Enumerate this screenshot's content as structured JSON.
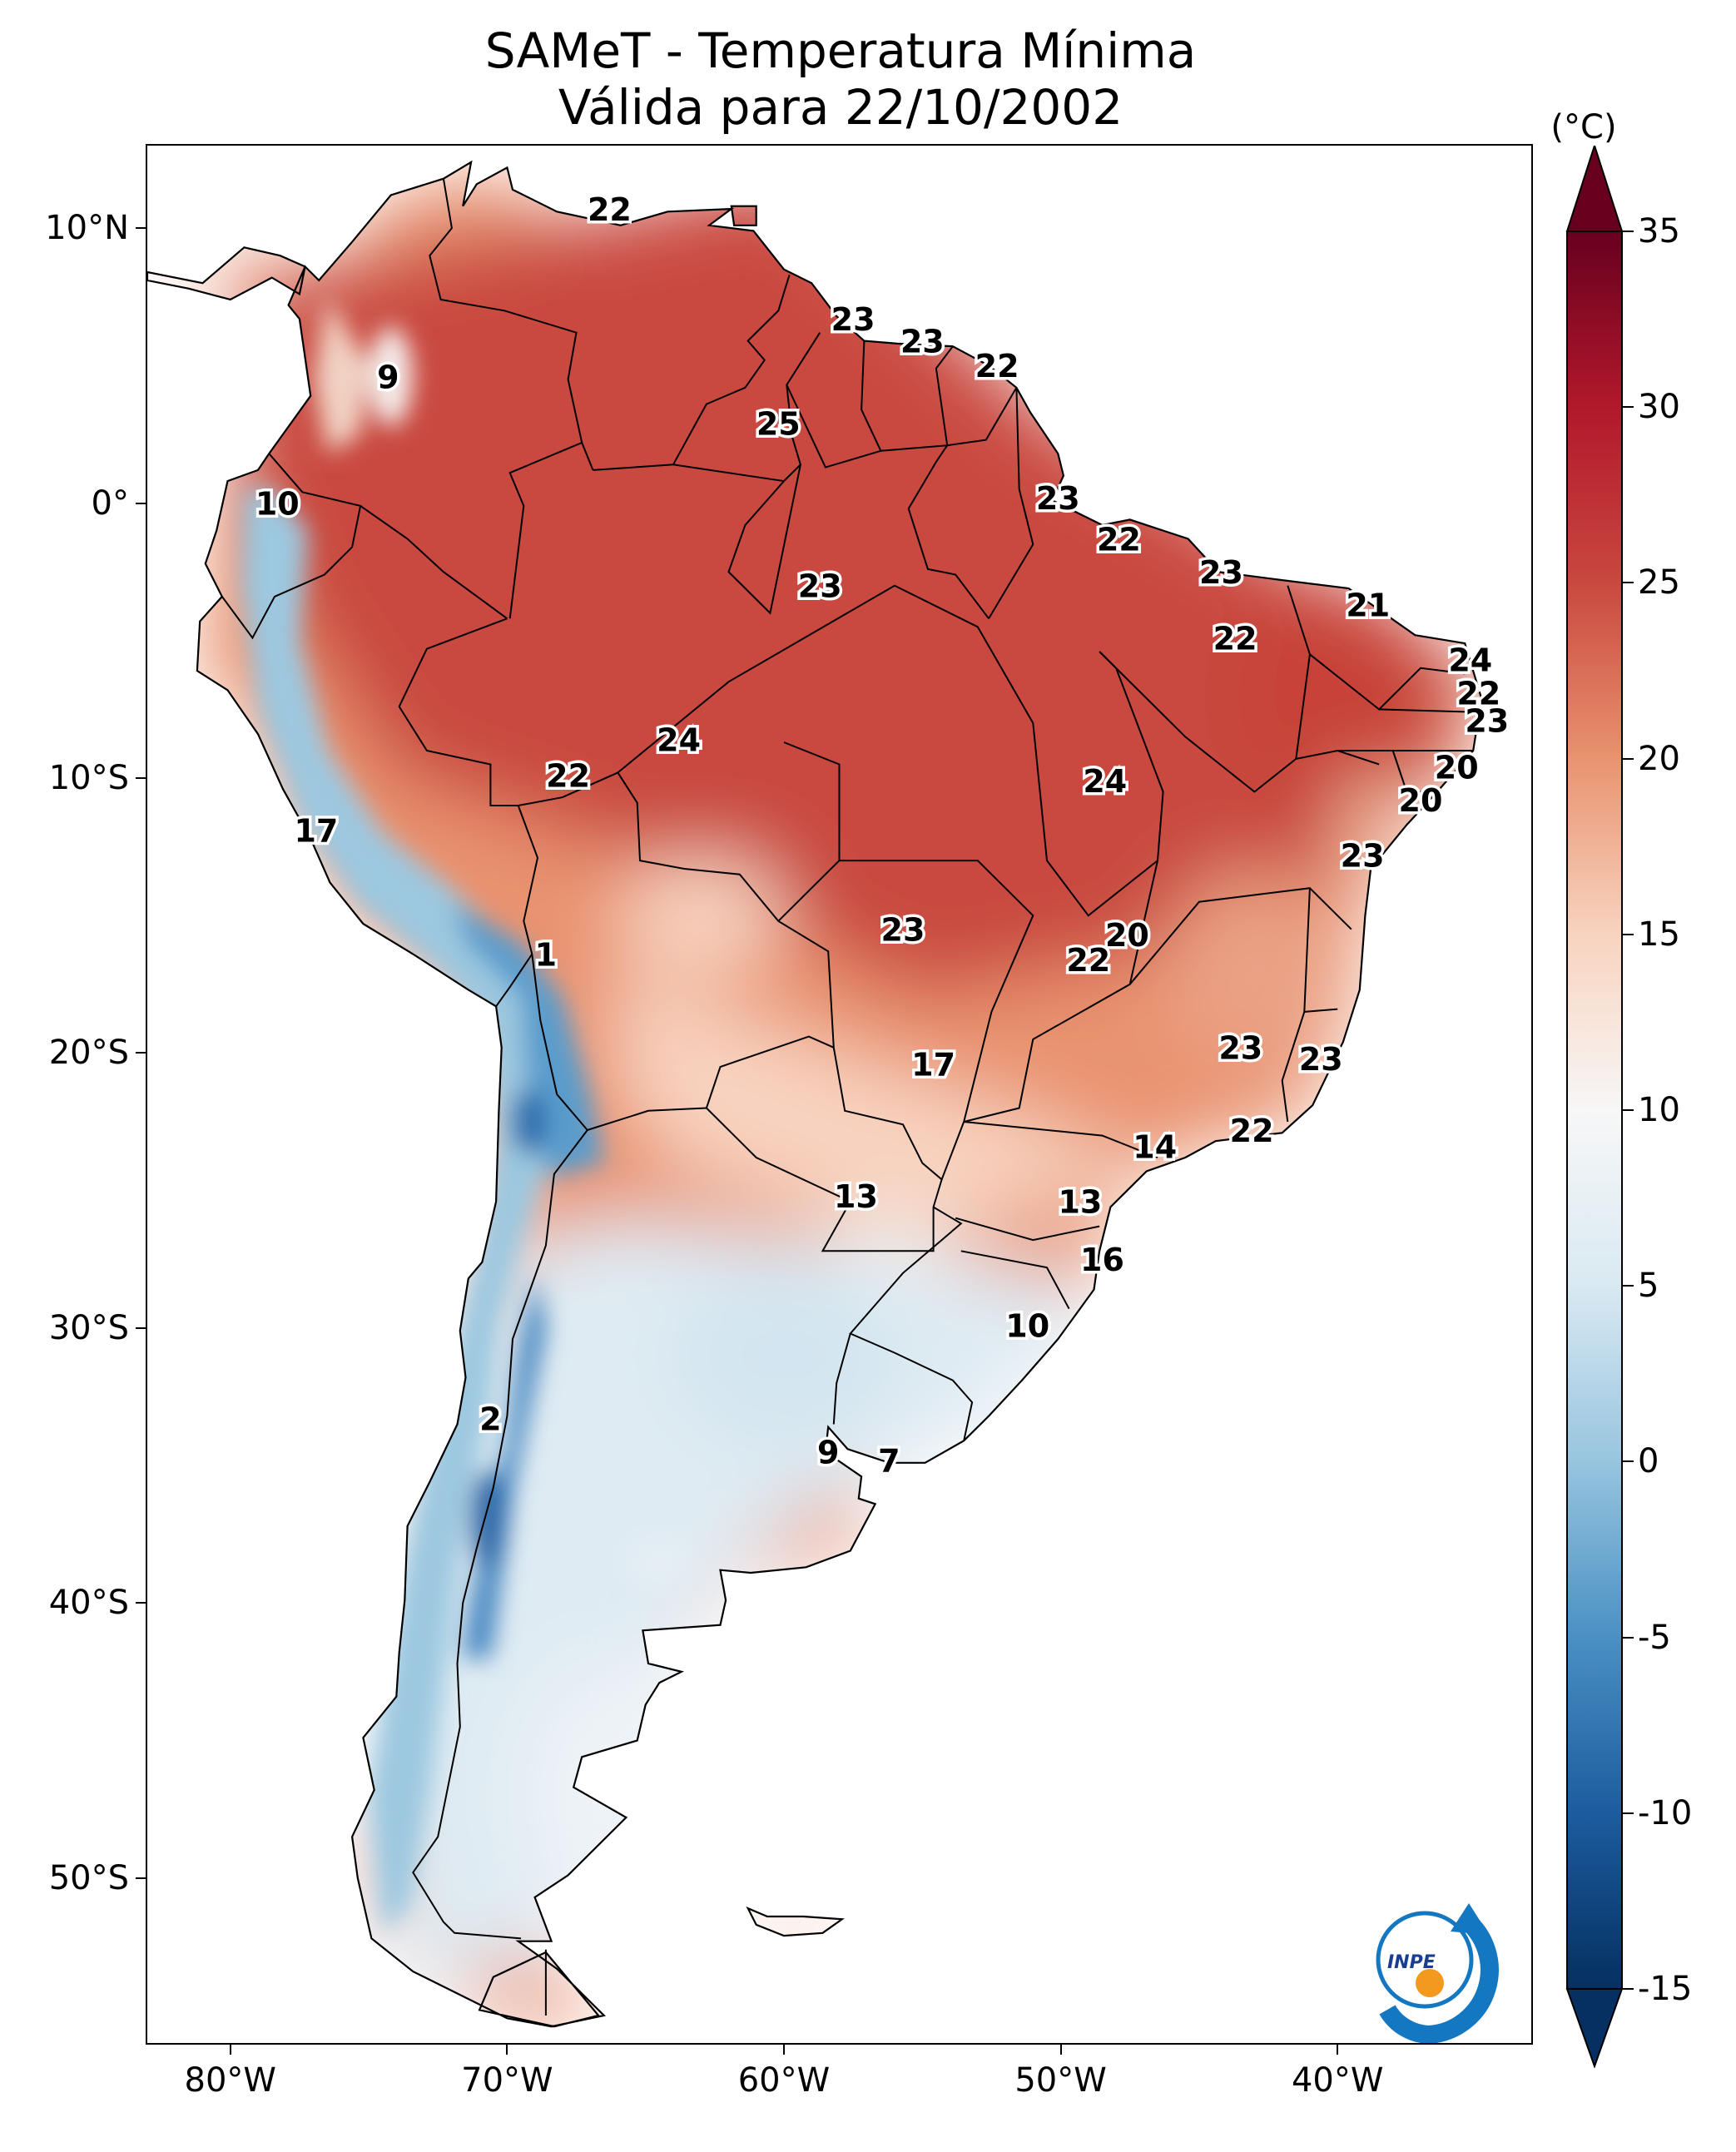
{
  "title": {
    "line1": "SAMeT - Temperatura Mínima",
    "line2": "Válida para 22/10/2002"
  },
  "map": {
    "lat_labels": [
      "10°N",
      "0°",
      "10°S",
      "20°S",
      "30°S",
      "40°S",
      "50°S"
    ],
    "lat_values": [
      10,
      0,
      -10,
      -20,
      -30,
      -40,
      -50
    ],
    "lon_labels": [
      "80°W",
      "70°W",
      "60°W",
      "50°W",
      "40°W"
    ],
    "lon_values": [
      -80,
      -70,
      -60,
      -50,
      -40
    ],
    "extent": {
      "lon_min": -83,
      "lon_max": -33,
      "lat_min": -56,
      "lat_max": 13
    },
    "station_values": [
      {
        "v": "22",
        "lon": -66.3,
        "lat": 10.6
      },
      {
        "v": "23",
        "lon": -57.5,
        "lat": 6.6
      },
      {
        "v": "23",
        "lon": -55.0,
        "lat": 5.8
      },
      {
        "v": "22",
        "lon": -52.3,
        "lat": 4.9
      },
      {
        "v": "9",
        "lon": -74.3,
        "lat": 4.5
      },
      {
        "v": "25",
        "lon": -60.2,
        "lat": 2.8
      },
      {
        "v": "23",
        "lon": -50.1,
        "lat": 0.1
      },
      {
        "v": "10",
        "lon": -78.3,
        "lat": -0.1
      },
      {
        "v": "22",
        "lon": -47.9,
        "lat": -1.4
      },
      {
        "v": "23",
        "lon": -44.2,
        "lat": -2.6
      },
      {
        "v": "23",
        "lon": -58.7,
        "lat": -3.1
      },
      {
        "v": "21",
        "lon": -38.9,
        "lat": -3.8
      },
      {
        "v": "22",
        "lon": -43.7,
        "lat": -5.0
      },
      {
        "v": "24",
        "lon": -35.2,
        "lat": -5.8
      },
      {
        "v": "22",
        "lon": -34.9,
        "lat": -7.0
      },
      {
        "v": "23",
        "lon": -34.6,
        "lat": -8.0
      },
      {
        "v": "24",
        "lon": -63.8,
        "lat": -8.7
      },
      {
        "v": "20",
        "lon": -35.7,
        "lat": -9.7
      },
      {
        "v": "22",
        "lon": -67.8,
        "lat": -10.0
      },
      {
        "v": "24",
        "lon": -48.4,
        "lat": -10.2
      },
      {
        "v": "20",
        "lon": -37.0,
        "lat": -10.9
      },
      {
        "v": "17",
        "lon": -76.9,
        "lat": -12.0
      },
      {
        "v": "23",
        "lon": -39.1,
        "lat": -12.9
      },
      {
        "v": "23",
        "lon": -55.7,
        "lat": -15.6
      },
      {
        "v": "20",
        "lon": -47.6,
        "lat": -15.8
      },
      {
        "v": "1",
        "lon": -68.6,
        "lat": -16.5
      },
      {
        "v": "22",
        "lon": -49.0,
        "lat": -16.7
      },
      {
        "v": "23",
        "lon": -43.5,
        "lat": -19.9
      },
      {
        "v": "23",
        "lon": -40.6,
        "lat": -20.3
      },
      {
        "v": "17",
        "lon": -54.6,
        "lat": -20.5
      },
      {
        "v": "22",
        "lon": -43.1,
        "lat": -22.9
      },
      {
        "v": "14",
        "lon": -46.6,
        "lat": -23.5
      },
      {
        "v": "13",
        "lon": -57.4,
        "lat": -25.3
      },
      {
        "v": "13",
        "lon": -49.3,
        "lat": -25.5
      },
      {
        "v": "16",
        "lon": -48.5,
        "lat": -27.6
      },
      {
        "v": "10",
        "lon": -51.2,
        "lat": -30.0
      },
      {
        "v": "2",
        "lon": -70.6,
        "lat": -33.4
      },
      {
        "v": "9",
        "lon": -58.4,
        "lat": -34.6
      },
      {
        "v": "7",
        "lon": -56.2,
        "lat": -34.9
      }
    ]
  },
  "colorbar": {
    "unit": "(°C)",
    "tick_labels": [
      "35",
      "30",
      "25",
      "20",
      "15",
      "10",
      "5",
      "0",
      "-5",
      "-10",
      "-15"
    ],
    "tick_values": [
      35,
      30,
      25,
      20,
      15,
      10,
      5,
      0,
      -5,
      -10,
      -15
    ],
    "range": [
      -15,
      35
    ],
    "colors": {
      "v_-15": "#053061",
      "v_-10": "#1c5c9e",
      "v_-5": "#4a90c4",
      "v_0": "#97c5df",
      "v_5": "#d9e9f2",
      "v_10": "#f7f7f7",
      "v_15": "#f8d3bf",
      "v_20": "#e9936f",
      "v_25": "#c9483f",
      "v_30": "#b2182b",
      "v_35": "#67001f"
    }
  },
  "logo": {
    "text": "INPE"
  }
}
